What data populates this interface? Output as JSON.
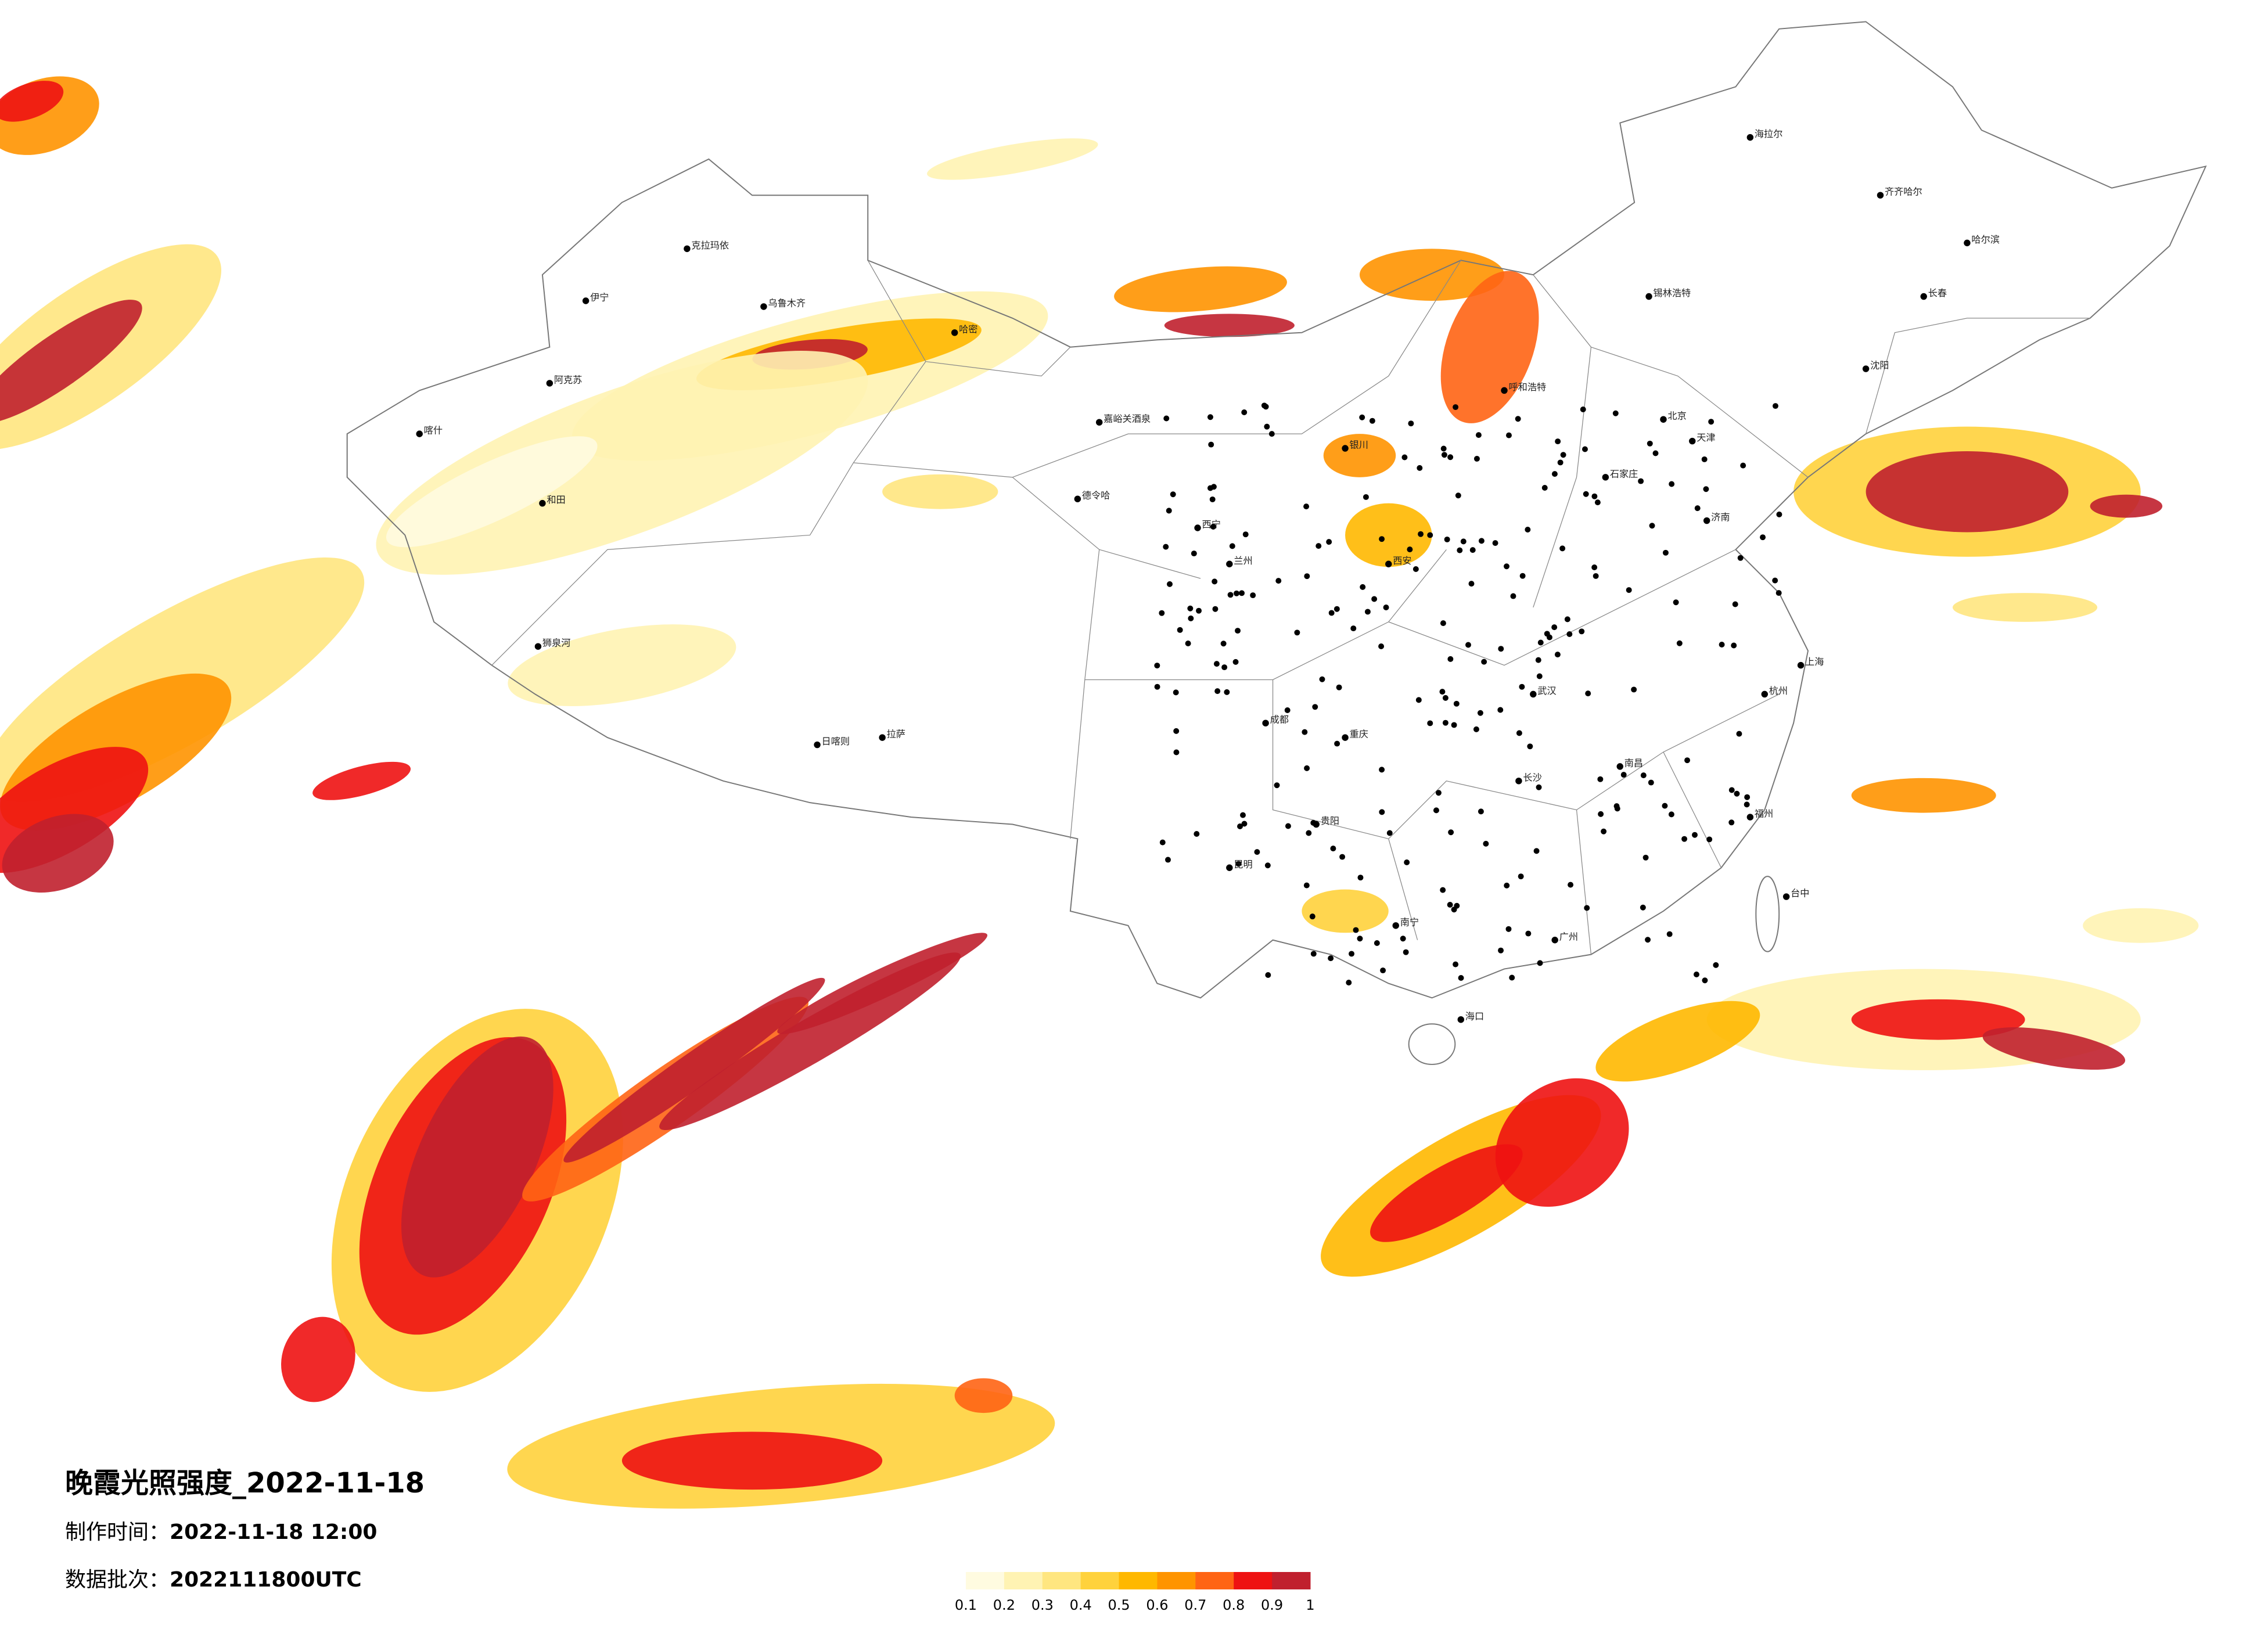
{
  "title": "晚霞光照强度_2022-11-18",
  "production_time": {
    "label": "制作时间：",
    "value": "2022-11-18 12:00"
  },
  "batch": {
    "label": "数据批次：",
    "value": "2022111800UTC"
  },
  "legend": {
    "ticks": [
      0.1,
      0.2,
      0.3,
      0.4,
      0.5,
      0.6,
      0.7,
      0.8,
      0.9,
      1
    ],
    "colors": [
      "#fffbe0",
      "#fff3b3",
      "#ffe680",
      "#ffd23c",
      "#ffb800",
      "#ff9400",
      "#ff6414",
      "#ee1212",
      "#c0202e"
    ]
  },
  "cities": [
    "喀什",
    "伊宁",
    "克拉玛依",
    "乌鲁木齐",
    "哈密",
    "阿克苏",
    "和田",
    "狮泉河",
    "日喀则",
    "拉萨",
    "德令哈",
    "嘉峪关酒泉",
    "西宁",
    "兰州",
    "银川",
    "呼和浩特",
    "锡林浩特",
    "海拉尔",
    "齐齐哈尔",
    "哈尔滨",
    "长春",
    "沈阳",
    "北京",
    "天津",
    "石家庄",
    "济南",
    "西安",
    "成都",
    "重庆",
    "昆明",
    "贵阳",
    "南宁",
    "广州",
    "福州",
    "台中",
    "海口",
    "上海",
    "武汉",
    "长沙",
    "南昌",
    "杭州"
  ]
}
